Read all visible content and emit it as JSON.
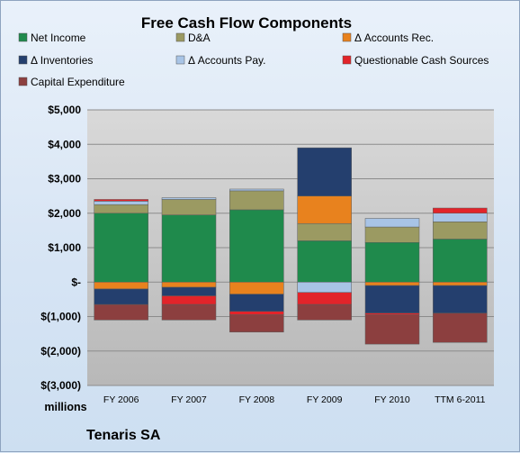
{
  "chart_data": {
    "type": "bar",
    "stacked": true,
    "title": "Free Cash Flow Components",
    "units": "millions",
    "company": "Tenaris SA",
    "ylim": [
      -3000,
      5000
    ],
    "yticks": [
      5000,
      4000,
      3000,
      2000,
      1000,
      0,
      -1000,
      -2000,
      -3000
    ],
    "ytick_labels": [
      "$5,000",
      "$4,000",
      "$3,000",
      "$2,000",
      "$1,000",
      "$-",
      "$(1,000)",
      "$(2,000)",
      "$(3,000)"
    ],
    "categories": [
      "FY 2006",
      "FY 2007",
      "FY 2008",
      "FY 2009",
      "FY 2010",
      "TTM 6-2011"
    ],
    "legend_position": "top",
    "grid": true,
    "series": [
      {
        "name": "Net Income",
        "color": "#1f8a4c",
        "values": [
          2000,
          1950,
          2100,
          1200,
          1150,
          1250
        ]
      },
      {
        "name": "D&A",
        "color": "#9b9a62",
        "values": [
          250,
          450,
          550,
          500,
          450,
          500
        ]
      },
      {
        "name": "Δ Accounts Rec.",
        "color": "#e8821e",
        "values": [
          -200,
          -150,
          -350,
          800,
          -100,
          -100
        ]
      },
      {
        "name": "Δ Inventories",
        "color": "#243f6e",
        "values": [
          -450,
          -250,
          -500,
          1400,
          -800,
          -800
        ]
      },
      {
        "name": "Δ Accounts Pay.",
        "color": "#a8c4e6",
        "values": [
          100,
          50,
          50,
          -300,
          250,
          250
        ]
      },
      {
        "name": "Questionable Cash Sources",
        "color": "#e2242a",
        "values": [
          50,
          -250,
          -100,
          -350,
          -50,
          150
        ]
      },
      {
        "name": "Capital Expenditure",
        "color": "#8c3f3f",
        "values": [
          -450,
          -450,
          -500,
          -450,
          -850,
          -850
        ]
      }
    ]
  }
}
